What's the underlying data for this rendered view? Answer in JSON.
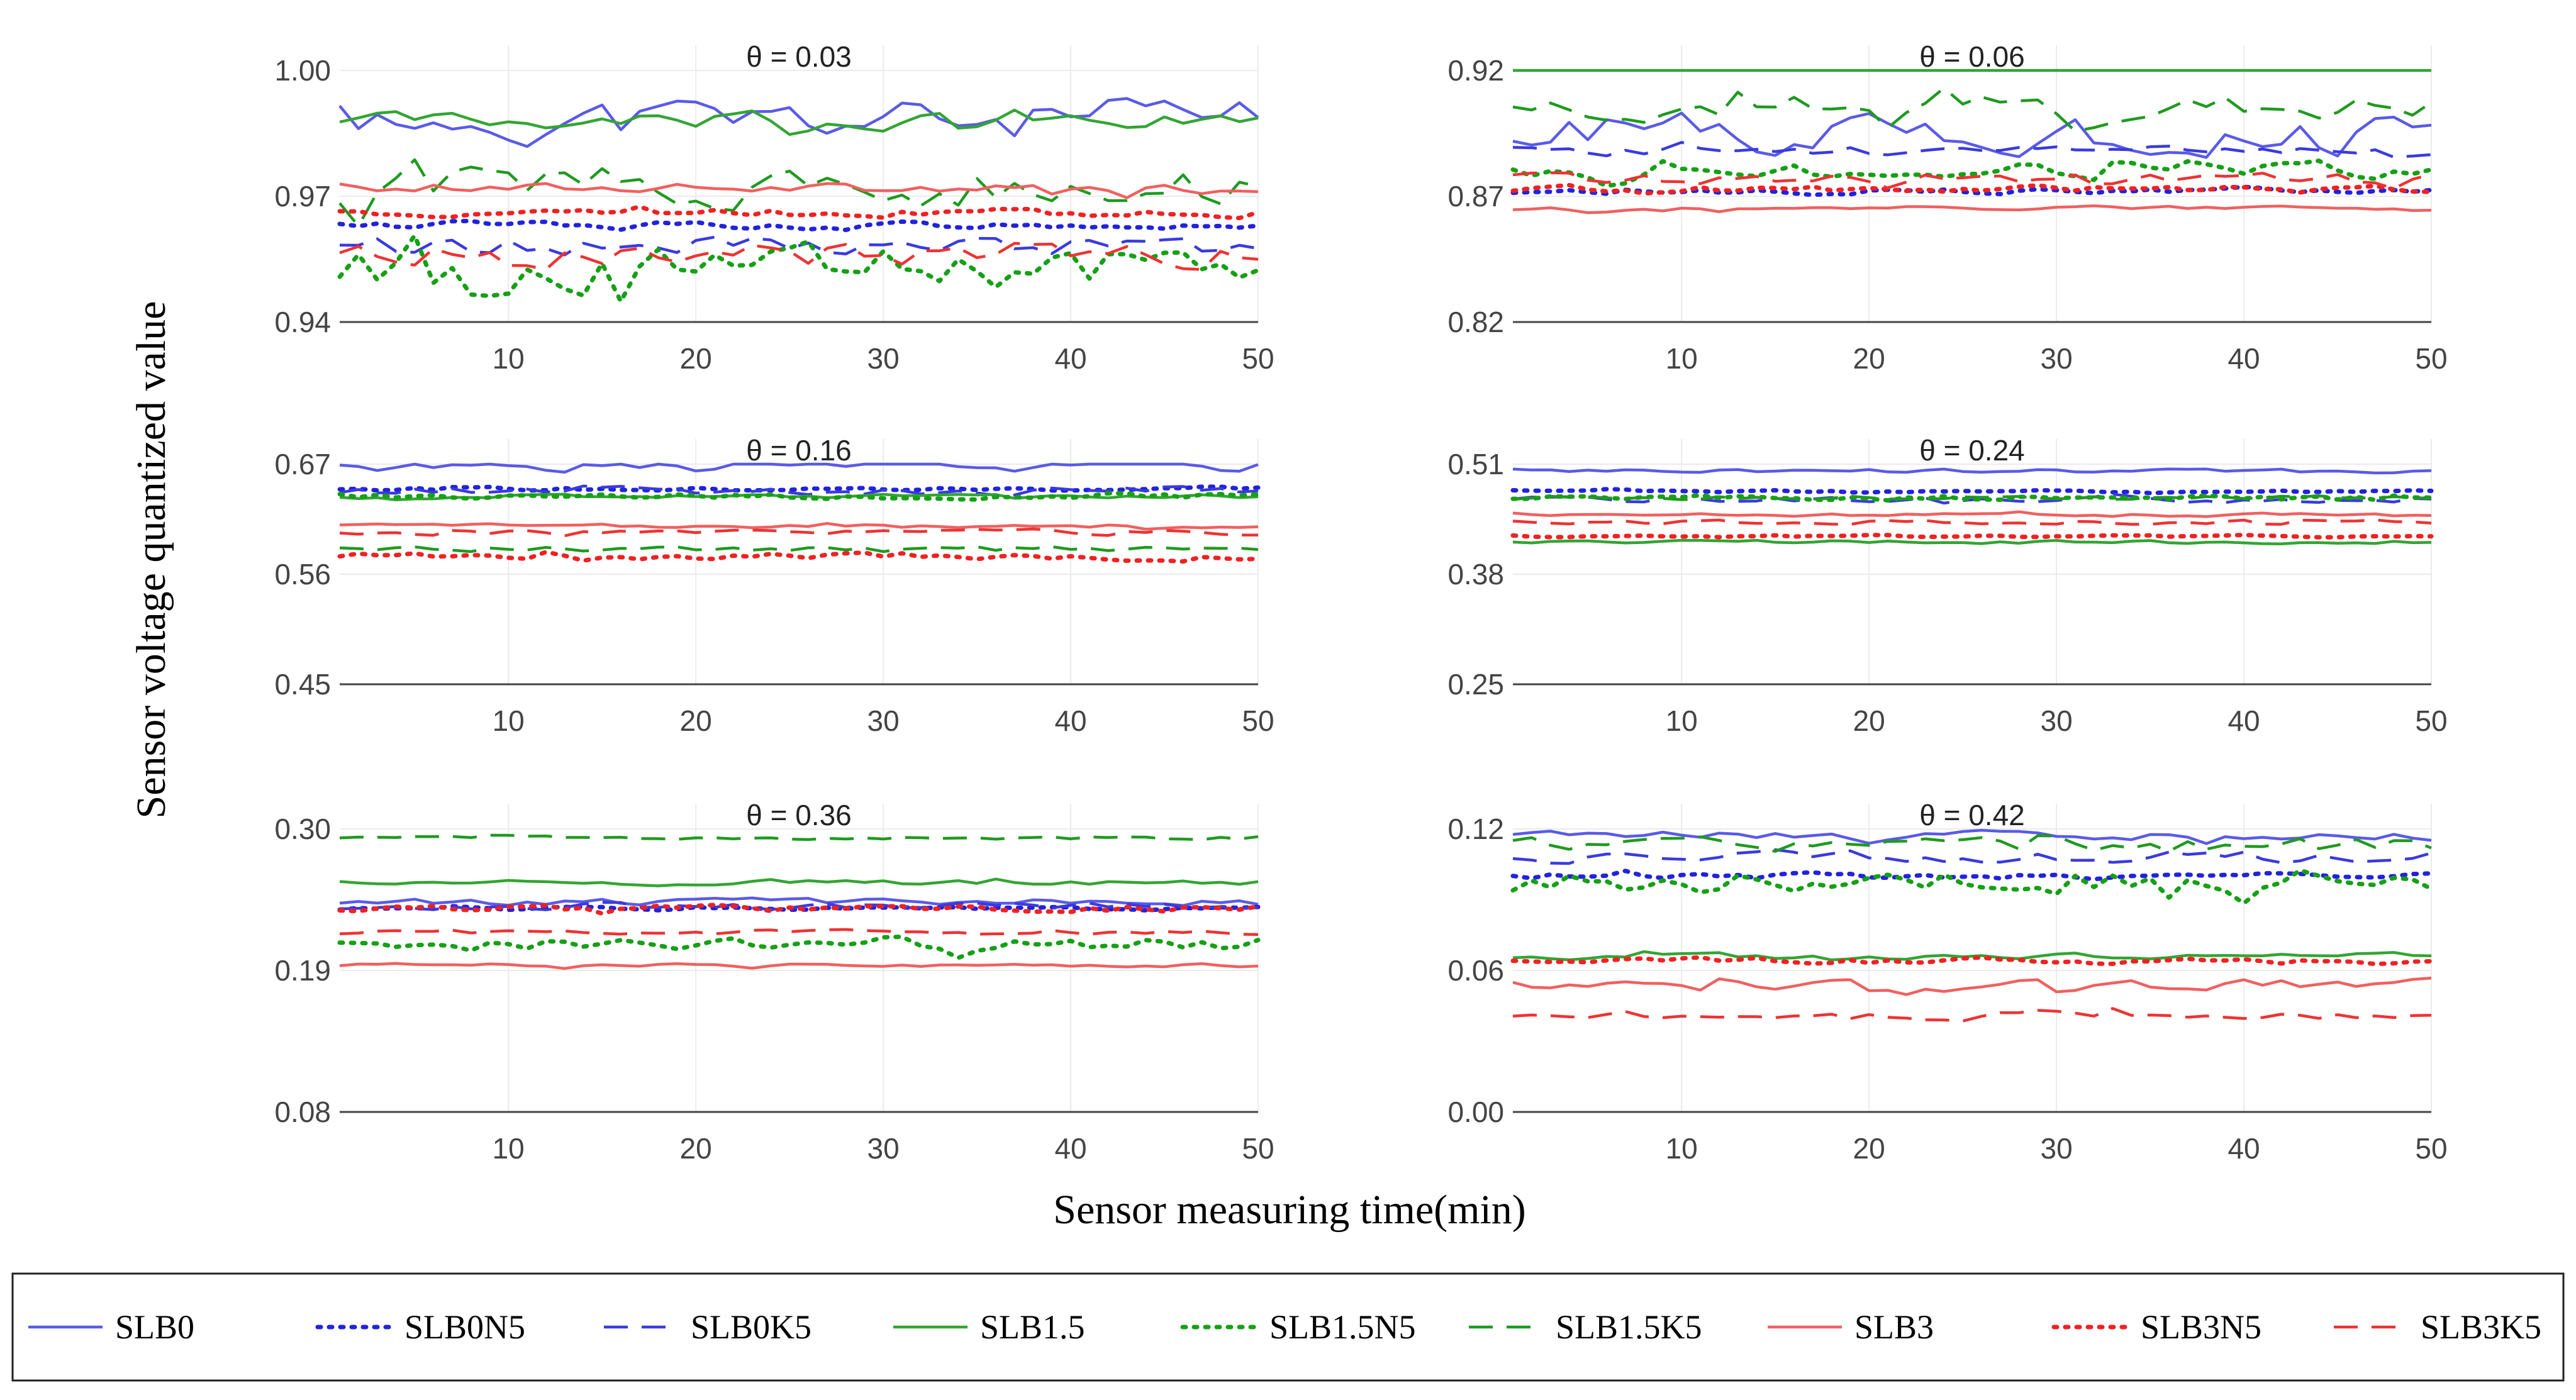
{
  "chart_data": {
    "type": "line",
    "ylabel": "Sensor voltage quantized value",
    "xlabel": "Sensor measuring time(min)",
    "legend_position": "bottom",
    "series_styles": [
      {
        "name": "SLB0",
        "color": "#5a5ae8",
        "dash": "solid"
      },
      {
        "name": "SLB0N5",
        "color": "#2222dd",
        "dash": "dot"
      },
      {
        "name": "SLB0K5",
        "color": "#3a3ae0",
        "dash": "dash"
      },
      {
        "name": "SLB1.5",
        "color": "#33a533",
        "dash": "solid"
      },
      {
        "name": "SLB1.5N5",
        "color": "#16a016",
        "dash": "dot"
      },
      {
        "name": "SLB1.5K5",
        "color": "#1f9a1f",
        "dash": "dash"
      },
      {
        "name": "SLB3",
        "color": "#f06060",
        "dash": "solid"
      },
      {
        "name": "SLB3N5",
        "color": "#ee2222",
        "dash": "dot"
      },
      {
        "name": "SLB3K5",
        "color": "#ee3333",
        "dash": "dash"
      }
    ],
    "panels": [
      {
        "title": "θ = 0.03",
        "xlim": [
          1,
          50
        ],
        "xticks": [
          10,
          20,
          30,
          40,
          50
        ],
        "ylim": [
          0.94,
          1.0
        ],
        "yticks": [
          "0.94",
          "0.97",
          "1.00"
        ],
        "series": [
          {
            "name": "SLB0",
            "base": 0.988,
            "noise": 0.008,
            "seed": 11
          },
          {
            "name": "SLB0N5",
            "base": 0.963,
            "noise": 0.0015,
            "seed": 12
          },
          {
            "name": "SLB0K5",
            "base": 0.958,
            "noise": 0.004,
            "seed": 13
          },
          {
            "name": "SLB1.5",
            "base": 0.988,
            "noise": 0.003,
            "seed": 14
          },
          {
            "name": "SLB1.5N5",
            "base": 0.953,
            "noise": 0.008,
            "seed": 15
          },
          {
            "name": "SLB1.5K5",
            "base": 0.972,
            "noise": 0.008,
            "seed": 16
          },
          {
            "name": "SLB3",
            "base": 0.972,
            "noise": 0.002,
            "seed": 17
          },
          {
            "name": "SLB3N5",
            "base": 0.966,
            "noise": 0.0015,
            "seed": 18
          },
          {
            "name": "SLB3K5",
            "base": 0.956,
            "noise": 0.005,
            "seed": 19
          }
        ]
      },
      {
        "title": "θ = 0.06",
        "xlim": [
          1,
          50
        ],
        "xticks": [
          10,
          20,
          30,
          40,
          50
        ],
        "ylim": [
          0.82,
          0.92
        ],
        "yticks": [
          "0.82",
          "0.87",
          "0.92"
        ],
        "series": [
          {
            "name": "SLB0",
            "base": 0.895,
            "noise": 0.012,
            "seed": 21
          },
          {
            "name": "SLB0N5",
            "base": 0.872,
            "noise": 0.0015,
            "seed": 22
          },
          {
            "name": "SLB0K5",
            "base": 0.888,
            "noise": 0.003,
            "seed": 23
          },
          {
            "name": "SLB1.5",
            "base": 0.922,
            "noise": 0.003,
            "seed": 24
          },
          {
            "name": "SLB1.5N5",
            "base": 0.88,
            "noise": 0.005,
            "seed": 25
          },
          {
            "name": "SLB1.5K5",
            "base": 0.906,
            "noise": 0.008,
            "seed": 26
          },
          {
            "name": "SLB3",
            "base": 0.865,
            "noise": 0.0015,
            "seed": 27
          },
          {
            "name": "SLB3N5",
            "base": 0.873,
            "noise": 0.002,
            "seed": 28
          },
          {
            "name": "SLB3K5",
            "base": 0.877,
            "noise": 0.003,
            "seed": 29
          }
        ]
      },
      {
        "title": "θ = 0.16",
        "xlim": [
          1,
          50
        ],
        "xticks": [
          10,
          20,
          30,
          40,
          50
        ],
        "ylim": [
          0.45,
          0.67
        ],
        "yticks": [
          "0.45",
          "0.56",
          "0.67"
        ],
        "series": [
          {
            "name": "SLB0",
            "base": 0.668,
            "noise": 0.008,
            "seed": 31
          },
          {
            "name": "SLB0N5",
            "base": 0.645,
            "noise": 0.003,
            "seed": 32
          },
          {
            "name": "SLB0K5",
            "base": 0.643,
            "noise": 0.006,
            "seed": 33
          },
          {
            "name": "SLB1.5",
            "base": 0.638,
            "noise": 0.003,
            "seed": 34
          },
          {
            "name": "SLB1.5N5",
            "base": 0.638,
            "noise": 0.004,
            "seed": 35
          },
          {
            "name": "SLB1.5K5",
            "base": 0.585,
            "noise": 0.004,
            "seed": 36
          },
          {
            "name": "SLB3",
            "base": 0.608,
            "noise": 0.003,
            "seed": 37
          },
          {
            "name": "SLB3N5",
            "base": 0.578,
            "noise": 0.006,
            "seed": 38
          },
          {
            "name": "SLB3K5",
            "base": 0.602,
            "noise": 0.004,
            "seed": 39
          }
        ]
      },
      {
        "title": "θ = 0.24",
        "xlim": [
          1,
          50
        ],
        "xticks": [
          10,
          20,
          30,
          40,
          50
        ],
        "ylim": [
          0.25,
          0.51
        ],
        "yticks": [
          "0.25",
          "0.38",
          "0.51"
        ],
        "series": [
          {
            "name": "SLB0",
            "base": 0.502,
            "noise": 0.004,
            "seed": 41
          },
          {
            "name": "SLB0N5",
            "base": 0.478,
            "noise": 0.002,
            "seed": 42
          },
          {
            "name": "SLB0K5",
            "base": 0.468,
            "noise": 0.005,
            "seed": 43
          },
          {
            "name": "SLB1.5",
            "base": 0.418,
            "noise": 0.003,
            "seed": 44
          },
          {
            "name": "SLB1.5N5",
            "base": 0.47,
            "noise": 0.005,
            "seed": 45
          },
          {
            "name": "SLB1.5K5",
            "base": 0.47,
            "noise": 0.004,
            "seed": 46
          },
          {
            "name": "SLB3",
            "base": 0.45,
            "noise": 0.003,
            "seed": 47
          },
          {
            "name": "SLB3N5",
            "base": 0.425,
            "noise": 0.002,
            "seed": 48
          },
          {
            "name": "SLB3K5",
            "base": 0.442,
            "noise": 0.004,
            "seed": 49
          }
        ]
      },
      {
        "title": "θ = 0.36",
        "xlim": [
          1,
          50
        ],
        "xticks": [
          10,
          20,
          30,
          40,
          50
        ],
        "ylim": [
          0.08,
          0.3
        ],
        "yticks": [
          "0.08",
          "0.19",
          "0.30"
        ],
        "series": [
          {
            "name": "SLB0",
            "base": 0.243,
            "noise": 0.004,
            "seed": 51
          },
          {
            "name": "SLB0N5",
            "base": 0.238,
            "noise": 0.002,
            "seed": 52
          },
          {
            "name": "SLB0K5",
            "base": 0.24,
            "noise": 0.004,
            "seed": 53
          },
          {
            "name": "SLB1.5",
            "base": 0.258,
            "noise": 0.003,
            "seed": 54
          },
          {
            "name": "SLB1.5N5",
            "base": 0.21,
            "noise": 0.008,
            "seed": 55
          },
          {
            "name": "SLB1.5K5",
            "base": 0.293,
            "noise": 0.002,
            "seed": 56
          },
          {
            "name": "SLB3",
            "base": 0.194,
            "noise": 0.002,
            "seed": 57
          },
          {
            "name": "SLB3N5",
            "base": 0.238,
            "noise": 0.004,
            "seed": 58
          },
          {
            "name": "SLB3K5",
            "base": 0.22,
            "noise": 0.003,
            "seed": 59
          }
        ]
      },
      {
        "title": "θ = 0.42",
        "xlim": [
          1,
          50
        ],
        "xticks": [
          10,
          20,
          30,
          40,
          50
        ],
        "ylim": [
          0.0,
          0.12
        ],
        "yticks": [
          "0.00",
          "0.06",
          "0.12"
        ],
        "series": [
          {
            "name": "SLB0",
            "base": 0.117,
            "noise": 0.003,
            "seed": 61
          },
          {
            "name": "SLB0N5",
            "base": 0.1,
            "noise": 0.002,
            "seed": 62
          },
          {
            "name": "SLB0K5",
            "base": 0.108,
            "noise": 0.004,
            "seed": 63
          },
          {
            "name": "SLB1.5",
            "base": 0.066,
            "noise": 0.002,
            "seed": 64
          },
          {
            "name": "SLB1.5N5",
            "base": 0.098,
            "noise": 0.008,
            "seed": 65
          },
          {
            "name": "SLB1.5K5",
            "base": 0.113,
            "noise": 0.005,
            "seed": 66
          },
          {
            "name": "SLB3",
            "base": 0.054,
            "noise": 0.004,
            "seed": 67
          },
          {
            "name": "SLB3N5",
            "base": 0.064,
            "noise": 0.002,
            "seed": 68
          },
          {
            "name": "SLB3K5",
            "base": 0.041,
            "noise": 0.003,
            "seed": 69
          }
        ]
      }
    ]
  }
}
